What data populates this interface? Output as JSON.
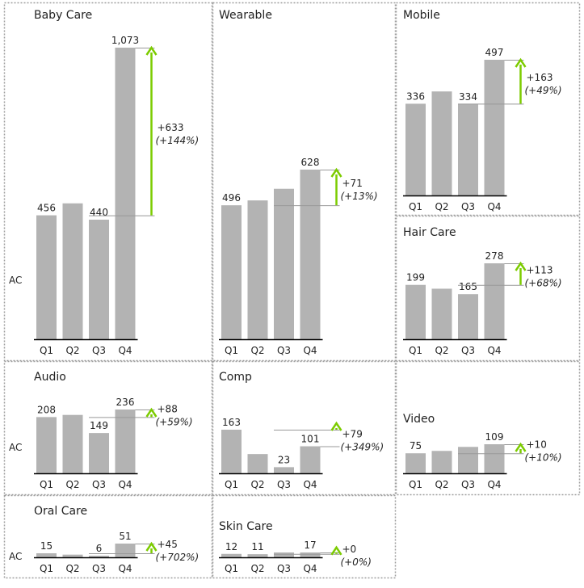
{
  "colors": {
    "bar": "#b3b3b3",
    "axis": "#000000",
    "connector": "#999999",
    "arrow": "#7ccc00",
    "divider": "#9e9e9e"
  },
  "row_label": "AC",
  "chart_data": [
    {
      "type": "bar",
      "title": "Baby Care",
      "categories": [
        "Q1",
        "Q2",
        "Q3",
        "Q4"
      ],
      "values": [
        456,
        500,
        440,
        1073
      ],
      "labels": [
        "456",
        "",
        "440",
        "1,073"
      ],
      "delta": "+633",
      "delta_pct": "(+144%)"
    },
    {
      "type": "bar",
      "title": "Wearable",
      "categories": [
        "Q1",
        "Q2",
        "Q3",
        "Q4"
      ],
      "values": [
        496,
        514,
        557,
        628
      ],
      "labels": [
        "496",
        "",
        "",
        "628"
      ],
      "delta": "+71",
      "delta_pct": "(+13%)"
    },
    {
      "type": "bar",
      "title": "Mobile",
      "categories": [
        "Q1",
        "Q2",
        "Q3",
        "Q4"
      ],
      "values": [
        336,
        381,
        334,
        497
      ],
      "labels": [
        "336",
        "",
        "334",
        "497"
      ],
      "delta": "+163",
      "delta_pct": "(+49%)"
    },
    {
      "type": "bar",
      "title": "Hair Care",
      "categories": [
        "Q1",
        "Q2",
        "Q3",
        "Q4"
      ],
      "values": [
        199,
        185,
        165,
        278
      ],
      "labels": [
        "199",
        "",
        "165",
        "278"
      ],
      "delta": "+113",
      "delta_pct": "(+68%)"
    },
    {
      "type": "bar",
      "title": "Audio",
      "categories": [
        "Q1",
        "Q2",
        "Q3",
        "Q4"
      ],
      "values": [
        208,
        216,
        149,
        236
      ],
      "labels": [
        "208",
        "",
        "149",
        "236"
      ],
      "delta": "+88",
      "delta_pct": "(+59%)"
    },
    {
      "type": "bar",
      "title": "Comp",
      "categories": [
        "Q1",
        "Q2",
        "Q3",
        "Q4"
      ],
      "values": [
        163,
        72,
        23,
        101
      ],
      "labels": [
        "163",
        "",
        "23",
        "101"
      ],
      "delta": "+79",
      "delta_pct": "(+349%)"
    },
    {
      "type": "bar",
      "title": "Video",
      "categories": [
        "Q1",
        "Q2",
        "Q3",
        "Q4"
      ],
      "values": [
        75,
        84,
        99,
        109
      ],
      "labels": [
        "75",
        "",
        "",
        "109"
      ],
      "delta": "+10",
      "delta_pct": "(+10%)"
    },
    {
      "type": "bar",
      "title": "Oral Care",
      "categories": [
        "Q1",
        "Q2",
        "Q3",
        "Q4"
      ],
      "values": [
        15,
        10,
        6,
        51
      ],
      "labels": [
        "15",
        "",
        "6",
        "51"
      ],
      "delta": "+45",
      "delta_pct": "(+702%)"
    },
    {
      "type": "bar",
      "title": "Skin Care",
      "categories": [
        "Q1",
        "Q2",
        "Q3",
        "Q4"
      ],
      "values": [
        12,
        11,
        17,
        17
      ],
      "labels": [
        "12",
        "11",
        "",
        "17"
      ],
      "delta": "+0",
      "delta_pct": "(+0%)"
    }
  ]
}
